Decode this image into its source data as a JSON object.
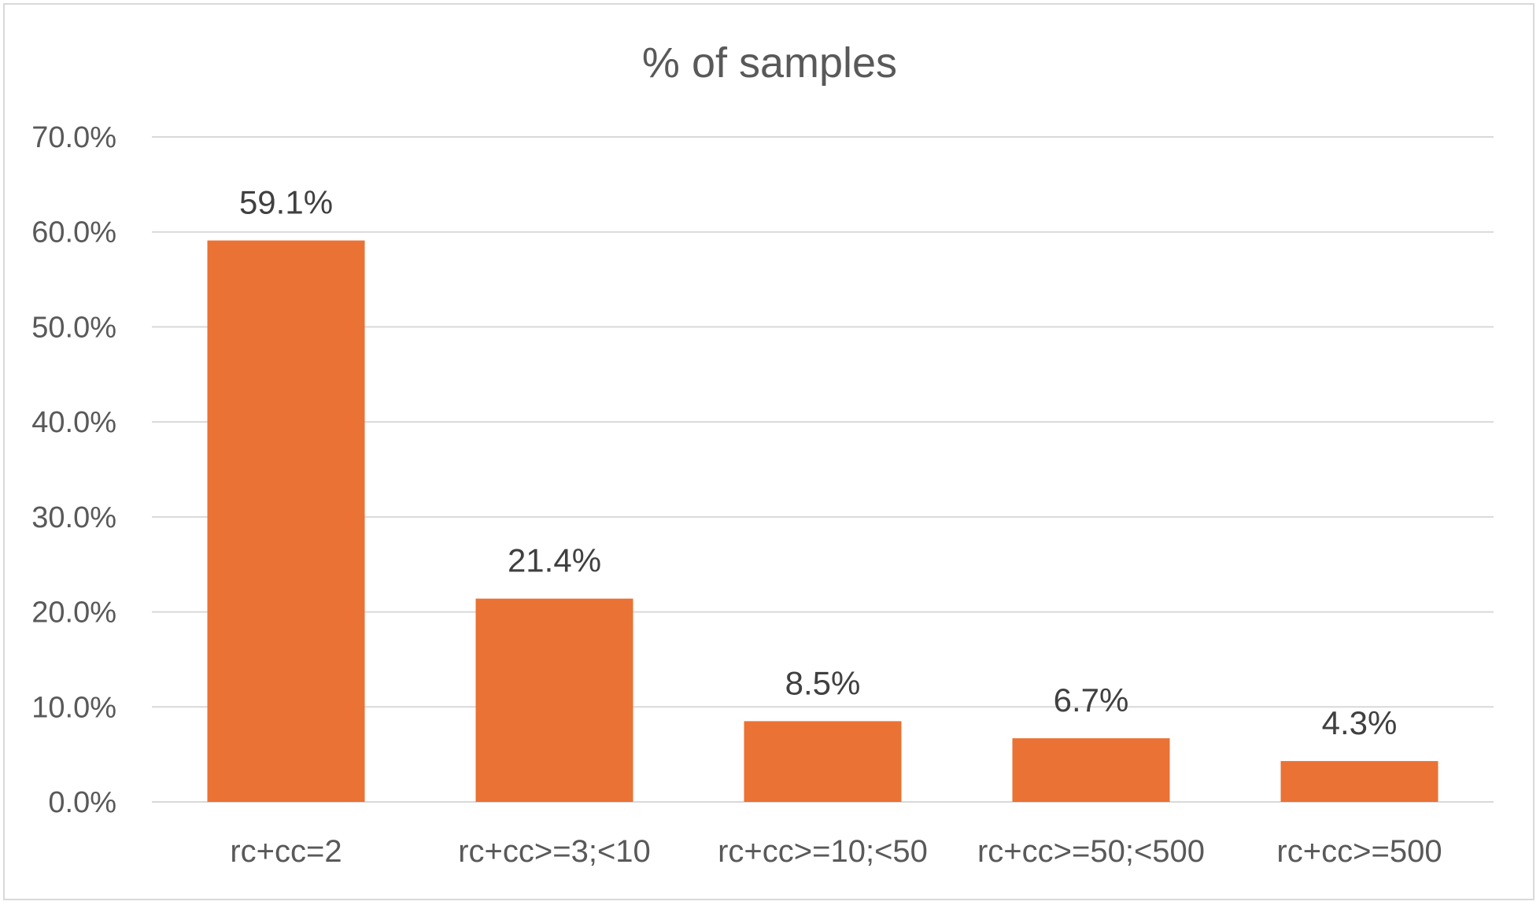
{
  "chart_data": {
    "type": "bar",
    "title": "% of samples",
    "xlabel": "",
    "ylabel": "",
    "categories": [
      "rc+cc=2",
      "rc+cc>=3;<10",
      "rc+cc>=10;<50",
      "rc+cc>=50;<500",
      "rc+cc>=500"
    ],
    "values": [
      59.1,
      21.4,
      8.5,
      6.7,
      4.3
    ],
    "data_labels": [
      "59.1%",
      "21.4%",
      "8.5%",
      "6.7%",
      "4.3%"
    ],
    "ylim": [
      0,
      70
    ],
    "yticks": [
      0,
      10,
      20,
      30,
      40,
      50,
      60,
      70
    ],
    "ytick_labels": [
      "0.0%",
      "10.0%",
      "20.0%",
      "30.0%",
      "40.0%",
      "50.0%",
      "60.0%",
      "70.0%"
    ],
    "grid": true,
    "legend": "none",
    "bar_color": "#ea7234",
    "grid_color": "#d9d9d9"
  }
}
